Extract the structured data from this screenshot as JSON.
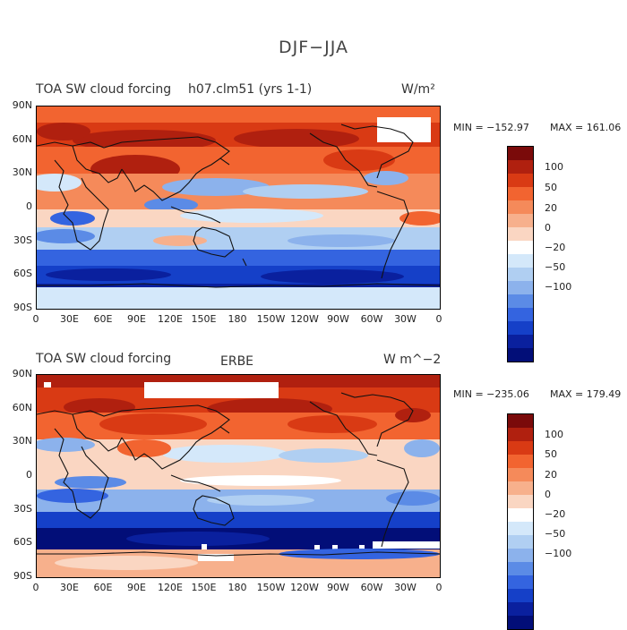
{
  "figure": {
    "title": "DJF−JJA"
  },
  "x_ticks": [
    "0",
    "30E",
    "60E",
    "90E",
    "120E",
    "150E",
    "180",
    "150W",
    "120W",
    "90W",
    "60W",
    "30W",
    "0"
  ],
  "y_ticks": [
    "90N",
    "60N",
    "30N",
    "0",
    "30S",
    "60S",
    "90S"
  ],
  "colors": {
    "levels": [
      "#7a0a0a",
      "#b0200f",
      "#d93a14",
      "#f26430",
      "#f58a5a",
      "#f7b08c",
      "#fad6c2",
      "#ffffff",
      "#d4e8fa",
      "#b0cff2",
      "#8cb2ec",
      "#5b8be6",
      "#3464e0",
      "#1540c8",
      "#0a209e",
      "#020e78"
    ],
    "land": "#111111"
  },
  "panels": [
    {
      "title_left": "TOA SW cloud forcing",
      "title_center": "h07.clm51 (yrs 1-1)",
      "units": "W/m²",
      "min_label": "MIN = −152.97",
      "max_label": "MAX = 161.06",
      "colorbar_labels": [
        "100",
        "50",
        "20",
        "0",
        "−20",
        "−50",
        "−100"
      ]
    },
    {
      "title_left": "TOA SW cloud forcing",
      "title_center": "ERBE",
      "units": "W m^−2",
      "min_label": "MIN = −235.06",
      "max_label": "MAX = 179.49",
      "colorbar_labels": [
        "100",
        "50",
        "20",
        "0",
        "−20",
        "−50",
        "−100"
      ]
    }
  ]
}
